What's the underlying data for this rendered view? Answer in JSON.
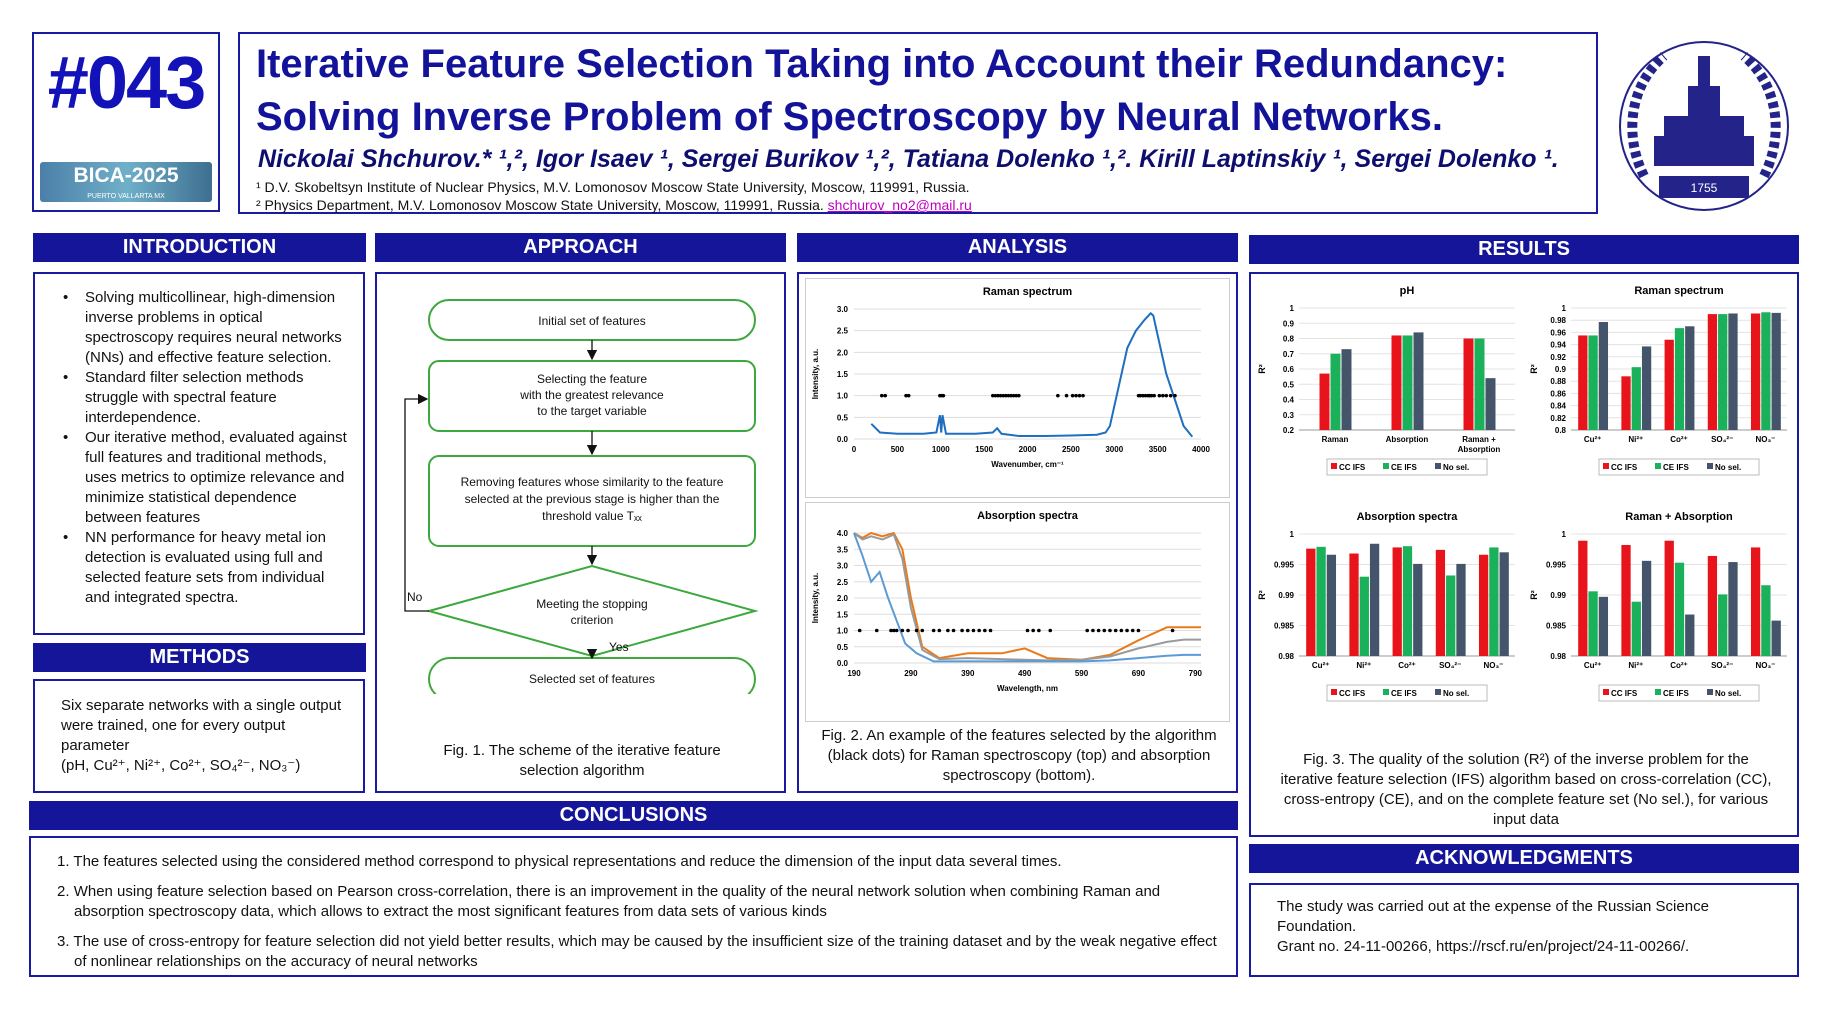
{
  "badge": {
    "number": "#043",
    "logo_text": "BICA-2025",
    "logo_sub": "PUERTO VALLARTA MX"
  },
  "title": {
    "line1": "Iterative Feature Selection Taking into Account their Redundancy:",
    "line2": "Solving Inverse Problem of Spectroscopy by Neural Networks.",
    "authors": "Nickolai Shchurov.* ¹,², Igor Isaev ¹, Sergei Burikov ¹,², Tatiana Dolenko ¹,². Kirill Laptinskiy ¹, Sergei Dolenko ¹.",
    "aff1": "¹ D.V. Skobeltsyn Institute of Nuclear Physics, M.V. Lomonosov Moscow State University, Moscow, 119991, Russia.",
    "aff2": "² Physics Department, M.V. Lomonosov Moscow State University, Moscow, 119991, Russia.",
    "email": "shchurov_no2@mail.ru"
  },
  "seal": {
    "year": "1755"
  },
  "sections": {
    "introduction": "INTRODUCTION",
    "approach": "APPROACH",
    "analysis": "ANALYSIS",
    "results": "RESULTS",
    "methods": "METHODS",
    "conclusions": "CONCLUSIONS",
    "acknowledgments": "ACKNOWLEDGMENTS"
  },
  "introduction": [
    "Solving multicollinear, high-dimension inverse problems in optical spectroscopy requires neural networks (NNs) and effective feature selection.",
    "Standard filter selection methods struggle with spectral feature interdependence.",
    "Our iterative method, evaluated against full features and traditional methods, uses metrics to optimize relevance and minimize statistical dependence between features",
    "NN performance for heavy metal ion detection is evaluated using full and selected feature sets from individual and integrated spectra."
  ],
  "methods": {
    "text": "Six separate networks with a single output were trained, one for every output parameter",
    "params": "(pH, Cu²⁺, Ni²⁺, Co²⁺, SO₄²⁻, NO₃⁻)"
  },
  "approach": {
    "step1": "Initial set of features",
    "step2a": "Selecting the feature",
    "step2b": "with the greatest relevance",
    "step2c": "to the target variable",
    "step3a": "Removing features whose similarity to the feature",
    "step3b": "selected at the previous stage is higher than the",
    "step3c": "threshold value Tₓₓ",
    "decision_a": "Meeting the stopping",
    "decision_b": "criterion",
    "yes": "Yes",
    "no": "No",
    "step4": "Selected set of features",
    "caption": "Fig. 1. The scheme of the iterative feature selection algorithm"
  },
  "analysis": {
    "caption": "Fig. 2. An example of the features selected by the algorithm (black dots) for Raman spectroscopy (top) and absorption spectroscopy (bottom)."
  },
  "results": {
    "caption": "Fig. 3. The quality of the solution (R²) of the inverse problem for the iterative feature selection (IFS) algorithm based on cross-correlation (CC), cross-entropy (CE), and on the complete feature set (No sel.), for various input data"
  },
  "conclusions": [
    "The features selected using the considered method correspond to physical representations and reduce the dimension of the input data several times.",
    "When using feature selection based on Pearson cross-correlation, there is an improvement in the quality of the neural network solution when combining Raman and absorption spectroscopy data, which allows to extract the most significant features from data sets of various kinds",
    "The use of cross-entropy for feature selection did not yield better results, which may be caused by the insufficient size of the training dataset and by the weak negative effect of nonlinear relationships on the accuracy of neural networks"
  ],
  "acknowledgments": {
    "line1": "The study was carried out at the expense of the Russian Science Foundation.",
    "line2": "Grant no. 24-11-00266, https://rscf.ru/en/project/24-11-00266/."
  },
  "colors": {
    "navy": "#15159a",
    "cc": "#e8141c",
    "ce": "#1bb15a",
    "nosel": "#44546a",
    "raman_line": "#1f6fc0",
    "abs_orange": "#e87a1c",
    "abs_gray": "#9a9a9a",
    "abs_blue": "#5b9bd5"
  },
  "chart_data": [
    {
      "type": "line",
      "title": "Raman spectrum",
      "xlabel": "Wavenumber, cm⁻¹",
      "ylabel": "Intensity, a.u.",
      "xlim": [
        0,
        4000
      ],
      "ylim": [
        0,
        3.0
      ],
      "x_ticks": [
        "0",
        "500",
        "1000",
        "1500",
        "2000",
        "2500",
        "3000",
        "3500",
        "4000"
      ],
      "y_ticks": [
        "0.0",
        "0.5",
        "1.0",
        "1.5",
        "2.0",
        "2.5",
        "3.0"
      ],
      "series": [
        {
          "x": [
            200,
            300,
            500,
            800,
            950,
            990,
            1005,
            1020,
            1060,
            1100,
            1400,
            1600,
            1650,
            1700,
            1900,
            2200,
            2500,
            2800,
            2900,
            2950,
            3050,
            3150,
            3250,
            3350,
            3420,
            3450,
            3500,
            3600,
            3700,
            3800,
            3900
          ],
          "y": [
            0.35,
            0.15,
            0.12,
            0.12,
            0.15,
            0.55,
            0.15,
            0.55,
            0.12,
            0.12,
            0.12,
            0.15,
            0.25,
            0.12,
            0.07,
            0.07,
            0.08,
            0.1,
            0.15,
            0.3,
            1.2,
            2.1,
            2.5,
            2.75,
            2.9,
            2.85,
            2.4,
            1.5,
            0.9,
            0.3,
            0.05
          ]
        }
      ],
      "selected_features": [
        {
          "x": [
            320,
            360,
            600,
            630,
            990,
            1010,
            1030,
            1600,
            1630,
            1660,
            1690,
            1720,
            1750,
            1780,
            1810,
            1840,
            1870,
            1900,
            2350,
            2450,
            2520,
            2560,
            2600,
            2640,
            3280,
            3300,
            3330,
            3360,
            3390,
            3410,
            3430,
            3460,
            3520,
            3560,
            3600,
            3650,
            3700
          ],
          "y": 1.0
        }
      ]
    },
    {
      "type": "line",
      "title": "Absorption spectra",
      "xlabel": "Wavelength, nm",
      "ylabel": "Intensity, a.u.",
      "xlim": [
        190,
        800
      ],
      "ylim": [
        0,
        4.0
      ],
      "x_ticks": [
        "190",
        "290",
        "390",
        "490",
        "590",
        "690",
        "790"
      ],
      "y_ticks": [
        "0.0",
        "0.5",
        "1.0",
        "1.5",
        "2.0",
        "2.5",
        "3.0",
        "3.5",
        "4.0"
      ],
      "series": [
        {
          "color": "orange",
          "x": [
            190,
            205,
            220,
            240,
            260,
            275,
            290,
            310,
            340,
            390,
            450,
            490,
            530,
            590,
            640,
            690,
            740,
            770,
            800
          ],
          "y": [
            4.0,
            3.85,
            4.0,
            3.9,
            4.0,
            3.5,
            2.0,
            0.5,
            0.15,
            0.3,
            0.3,
            0.45,
            0.15,
            0.1,
            0.25,
            0.7,
            1.1,
            1.1,
            1.1
          ]
        },
        {
          "color": "gray",
          "x": [
            190,
            205,
            220,
            240,
            260,
            275,
            290,
            310,
            340,
            390,
            450,
            490,
            530,
            590,
            640,
            690,
            740,
            770,
            800
          ],
          "y": [
            4.0,
            3.8,
            3.9,
            3.8,
            3.95,
            3.2,
            1.7,
            0.4,
            0.12,
            0.15,
            0.12,
            0.1,
            0.08,
            0.1,
            0.2,
            0.45,
            0.65,
            0.72,
            0.72
          ]
        },
        {
          "color": "blue",
          "x": [
            190,
            205,
            220,
            235,
            250,
            265,
            280,
            300,
            330,
            390,
            450,
            490,
            530,
            590,
            640,
            690,
            740,
            770,
            800
          ],
          "y": [
            4.0,
            3.3,
            2.5,
            2.8,
            2.0,
            1.3,
            0.6,
            0.3,
            0.05,
            0.05,
            0.05,
            0.05,
            0.05,
            0.05,
            0.08,
            0.15,
            0.22,
            0.25,
            0.25
          ]
        }
      ],
      "selected_features": [
        {
          "x": [
            200,
            230,
            255,
            260,
            265,
            275,
            285,
            300,
            310,
            330,
            340,
            355,
            365,
            380,
            390,
            400,
            410,
            420,
            430,
            495,
            505,
            515,
            535,
            600,
            610,
            620,
            630,
            640,
            650,
            660,
            670,
            680,
            690,
            750
          ],
          "y": 1.0
        }
      ]
    },
    {
      "type": "bar",
      "title": "pH",
      "ylabel": "R²",
      "ylim": [
        0.2,
        1
      ],
      "y_ticks": [
        "0.2",
        "0.3",
        "0.4",
        "0.5",
        "0.6",
        "0.7",
        "0.8",
        "0.9",
        "1"
      ],
      "categories": [
        "Raman",
        "Absorption",
        "Raman + Absorption"
      ],
      "series": [
        {
          "name": "CC IFS",
          "values": [
            0.57,
            0.82,
            0.8
          ]
        },
        {
          "name": "CE IFS",
          "values": [
            0.7,
            0.82,
            0.8
          ]
        },
        {
          "name": "No sel.",
          "values": [
            0.73,
            0.84,
            0.54
          ]
        }
      ]
    },
    {
      "type": "bar",
      "title": "Raman spectrum",
      "ylabel": "R²",
      "ylim": [
        0.8,
        1
      ],
      "y_ticks": [
        "0.8",
        "0.82",
        "0.84",
        "0.86",
        "0.88",
        "0.9",
        "0.92",
        "0.94",
        "0.96",
        "0.98",
        "1"
      ],
      "categories": [
        "Cu²⁺",
        "Ni²⁺",
        "Co²⁺",
        "SO₄²⁻",
        "NO₃⁻"
      ],
      "series": [
        {
          "name": "CC IFS",
          "values": [
            0.955,
            0.888,
            0.948,
            0.99,
            0.991
          ]
        },
        {
          "name": "CE IFS",
          "values": [
            0.955,
            0.903,
            0.967,
            0.99,
            0.993
          ]
        },
        {
          "name": "No sel.",
          "values": [
            0.977,
            0.937,
            0.97,
            0.991,
            0.992
          ]
        }
      ]
    },
    {
      "type": "bar",
      "title": "Absorption spectra",
      "ylabel": "R²",
      "ylim": [
        0.98,
        1
      ],
      "y_ticks": [
        "0.98",
        "0.985",
        "0.99",
        "0.995",
        "1"
      ],
      "categories": [
        "Cu²⁺",
        "Ni²⁺",
        "Co²⁺",
        "SO₄²⁻",
        "NO₃⁻"
      ],
      "series": [
        {
          "name": "CC IFS",
          "values": [
            0.9976,
            0.9968,
            0.9978,
            0.9974,
            0.9966
          ]
        },
        {
          "name": "CE IFS",
          "values": [
            0.9979,
            0.993,
            0.998,
            0.9932,
            0.9978
          ]
        },
        {
          "name": "No sel.",
          "values": [
            0.9966,
            0.9984,
            0.9951,
            0.9951,
            0.997
          ]
        }
      ]
    },
    {
      "type": "bar",
      "title": "Raman + Absorption",
      "ylabel": "R²",
      "ylim": [
        0.98,
        1
      ],
      "y_ticks": [
        "0.98",
        "0.985",
        "0.99",
        "0.995",
        "1"
      ],
      "categories": [
        "Cu²⁺",
        "Ni²⁺",
        "Co²⁺",
        "SO₄²⁻",
        "NO₃⁻"
      ],
      "series": [
        {
          "name": "CC IFS",
          "values": [
            0.9989,
            0.9982,
            0.9989,
            0.9964,
            0.9978
          ]
        },
        {
          "name": "CE IFS",
          "values": [
            0.9906,
            0.9889,
            0.9953,
            0.9901,
            0.9916
          ]
        },
        {
          "name": "No sel.",
          "values": [
            0.9897,
            0.9956,
            0.9868,
            0.9954,
            0.9858
          ]
        }
      ]
    }
  ]
}
